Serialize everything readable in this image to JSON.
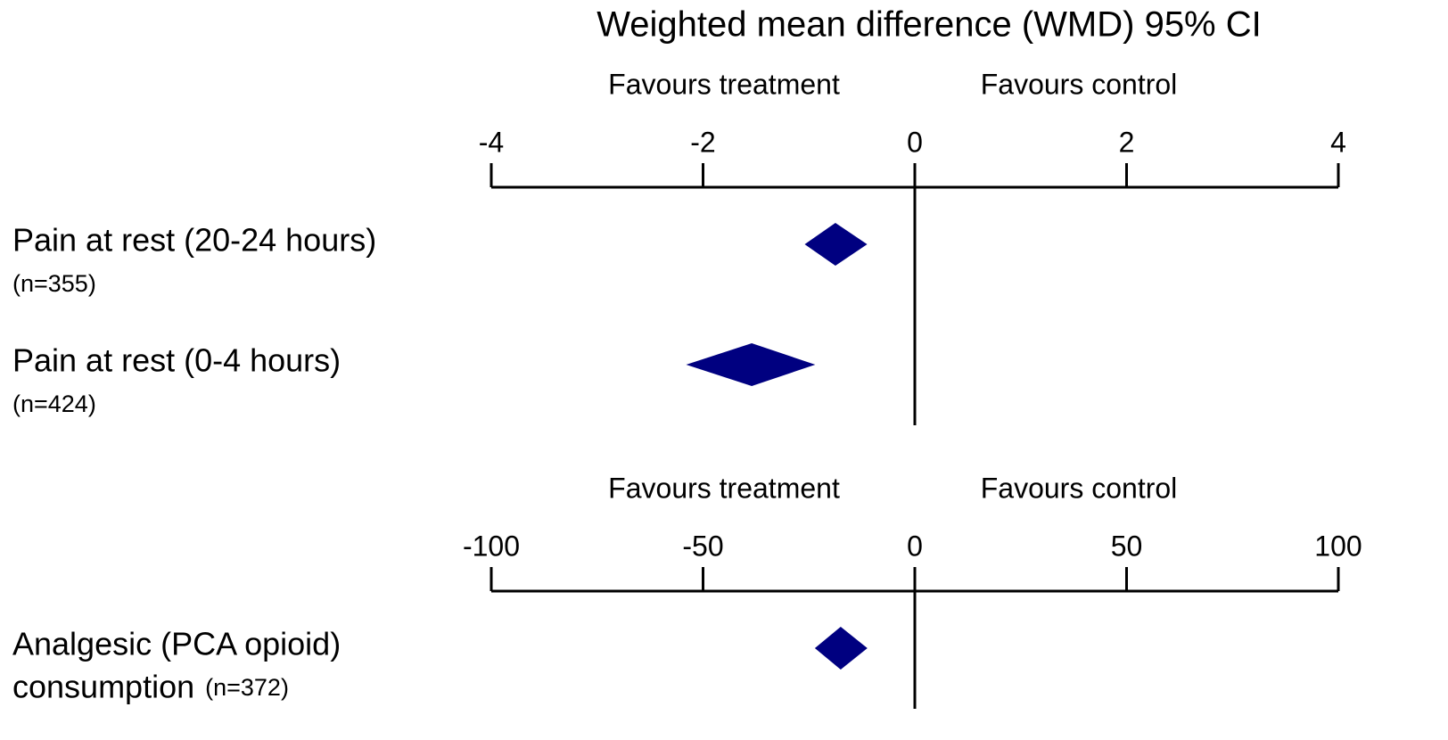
{
  "chart_data": [
    {
      "type": "forest",
      "title": "Weighted mean difference (WMD) 95% CI",
      "annotations": [
        "Favours treatment",
        "Favours control"
      ],
      "xlim": [
        -4,
        4
      ],
      "xticks": [
        -4,
        -2,
        0,
        2,
        4
      ],
      "color": "#000080",
      "rows": [
        {
          "label": [
            "Pain at rest (20-24 hours)"
          ],
          "n": "(n=355)",
          "mean": -0.75,
          "lower": -1.04,
          "upper": -0.45
        },
        {
          "label": [
            "Pain at rest (0-4 hours)"
          ],
          "n": "(n=424)",
          "mean": -1.54,
          "lower": -2.16,
          "upper": -0.94
        }
      ]
    },
    {
      "type": "forest",
      "annotations": [
        "Favours treatment",
        "Favours control"
      ],
      "xlim": [
        -100,
        100
      ],
      "xticks": [
        -100,
        -50,
        0,
        50,
        100
      ],
      "color": "#000080",
      "rows": [
        {
          "label": [
            "Analgesic (PCA opioid)",
            "consumption"
          ],
          "n": "(n=372)",
          "mean": -17.5,
          "lower": -23.6,
          "upper": -11.2
        }
      ]
    }
  ]
}
